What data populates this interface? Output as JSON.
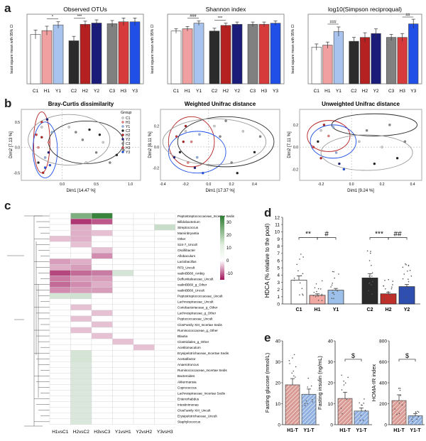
{
  "panel_labels": [
    "a",
    "b",
    "c",
    "d",
    "e"
  ],
  "colors": {
    "C1": "#ffffff",
    "H1": "#f0a0a0",
    "Y1": "#a8c4ee",
    "C2": "#2b2b2b",
    "H2": "#b52020",
    "Y2": "#1b1b7a",
    "C3": "#808080",
    "H3": "#d63a3a",
    "Y3": "#1f4fe6",
    "d_C1": "#ffffff",
    "d_H1": "#f2a9a3",
    "d_Y1": "#9cc0ea",
    "d_C2": "#2a2a2a",
    "d_H2": "#c0302a",
    "d_Y2": "#2e4fb0",
    "hm_pos": "#2e7d32",
    "hm_neg": "#a0135a"
  },
  "chart_data": [
    {
      "type": "bar",
      "id": "a1",
      "title": "Observed OTUs",
      "ylabel": "least square mean with 95% CI",
      "categories": [
        "C1",
        "H1",
        "Y1",
        "C2",
        "H2",
        "Y2",
        "C3",
        "H3",
        "Y3"
      ],
      "values": [
        78,
        84,
        93,
        68,
        94,
        96,
        95,
        98,
        98
      ],
      "errors": [
        7,
        7,
        5,
        7,
        5,
        5,
        5,
        6,
        6
      ],
      "ylim": [
        0,
        110
      ],
      "annotations": [
        {
          "from": 1,
          "to": 2,
          "text": "*"
        },
        {
          "from": 3,
          "to": 4,
          "text": "***"
        }
      ]
    },
    {
      "type": "bar",
      "id": "a2",
      "title": "Shannon index",
      "ylabel": "least square mean with 95% CI",
      "categories": [
        "C1",
        "H1",
        "Y1",
        "C2",
        "H2",
        "Y2",
        "C3",
        "H3",
        "Y3"
      ],
      "values": [
        4.7,
        4.9,
        5.4,
        4.7,
        5.2,
        5.3,
        5.3,
        5.3,
        5.4
      ],
      "errors": [
        0.2,
        0.2,
        0.2,
        0.25,
        0.2,
        0.2,
        0.2,
        0.2,
        0.2
      ],
      "ylim": [
        0,
        6.2
      ],
      "annotations": [
        {
          "from": 1,
          "to": 2,
          "text": "###"
        },
        {
          "from": 3,
          "to": 4,
          "text": "***"
        }
      ]
    },
    {
      "type": "bar",
      "id": "a3",
      "title": "log10(Simpson reciproqual)",
      "ylabel": "least square mean with 95% CI",
      "categories": [
        "C1",
        "H1",
        "Y1",
        "C2",
        "H2",
        "Y2",
        "C3",
        "H3",
        "Y3"
      ],
      "values": [
        9.5,
        10,
        13.5,
        11,
        12,
        13,
        12,
        12,
        15.5
      ],
      "errors": [
        0.8,
        0.8,
        1.2,
        1,
        1.2,
        1.2,
        0.8,
        1,
        1.2
      ],
      "ylim": [
        0,
        18
      ],
      "annotations": [
        {
          "from": 1,
          "to": 2,
          "text": "###"
        },
        {
          "from": 7,
          "to": 8,
          "text": "##"
        }
      ]
    },
    {
      "type": "scatter",
      "id": "b1",
      "title": "Bray-Curtis dissimilarity",
      "xlabel": "Dim1 [14.47 %]",
      "ylabel": "Dim2 [7.13 %]",
      "xlim": [
        -0.6,
        1.15
      ],
      "ylim": [
        -0.65,
        0.75
      ],
      "xticks": [
        0,
        0.5,
        1
      ],
      "xtick_labels": [
        "0.0",
        "0.5",
        "1.0"
      ],
      "yticks": [
        -0.5,
        0,
        0.5
      ],
      "ytick_labels": [
        "-0.5",
        "0.0",
        "0.5"
      ],
      "points": [
        [
          -0.3,
          0.4,
          "C1"
        ],
        [
          -0.2,
          0.1,
          "H1"
        ],
        [
          -0.25,
          -0.2,
          "Y1"
        ],
        [
          -0.35,
          -0.3,
          "C2"
        ],
        [
          -0.3,
          0.2,
          "H2"
        ],
        [
          -0.2,
          -0.1,
          "Y2"
        ],
        [
          0.2,
          0.3,
          "C3"
        ],
        [
          0.3,
          0.15,
          "C3"
        ],
        [
          0.5,
          -0.1,
          "C3"
        ],
        [
          0.6,
          0.1,
          "C1"
        ],
        [
          0.8,
          -0.15,
          "C2"
        ],
        [
          0.9,
          -0.05,
          "C3"
        ],
        [
          -0.3,
          0.5,
          "H3"
        ],
        [
          -0.25,
          -0.4,
          "Y3"
        ],
        [
          0.1,
          0.4,
          "C1"
        ],
        [
          0.4,
          0.35,
          "C2"
        ],
        [
          0.7,
          -0.3,
          "C3"
        ],
        [
          -0.35,
          0.0,
          "H1"
        ],
        [
          -0.15,
          0.3,
          "Y1"
        ],
        [
          -0.28,
          -0.5,
          "H2"
        ],
        [
          0.35,
          -0.3,
          "C1"
        ],
        [
          0.55,
          0.25,
          "C2"
        ],
        [
          -0.22,
          0.55,
          "Y2"
        ],
        [
          -0.38,
          0.25,
          "H3"
        ],
        [
          -0.18,
          -0.35,
          "Y3"
        ]
      ],
      "ellipses": [
        [
          -0.3,
          0.1,
          0.12,
          0.6,
          "#b52020"
        ],
        [
          -0.25,
          -0.05,
          0.18,
          0.55,
          "#1f4fe6"
        ],
        [
          0.35,
          0.1,
          0.55,
          0.42,
          "#2b2b2b"
        ],
        [
          0.1,
          0.15,
          0.6,
          0.5,
          "#9a9a9a"
        ]
      ],
      "legend": {
        "title": "Group",
        "entries": [
          "C1",
          "H1",
          "Y1",
          "C2",
          "H2",
          "Y2",
          "C3",
          "H3",
          "Y3"
        ]
      }
    },
    {
      "type": "scatter",
      "id": "b2",
      "title": "Weighted Unifrac distance",
      "xlabel": "Dim1 [17.37 %]",
      "ylabel": "Dim2 [8.11 %]",
      "xlim": [
        -0.42,
        0.62
      ],
      "ylim": [
        -0.32,
        0.36
      ],
      "xticks": [
        -0.4,
        -0.2,
        0,
        0.2,
        0.4
      ],
      "xtick_labels": [
        "-0.4",
        "-0.2",
        "0.0",
        "0.2",
        "0.4"
      ],
      "yticks": [
        -0.2,
        0,
        0.2
      ],
      "ytick_labels": [
        "-0.2",
        "0.0",
        "0.2"
      ],
      "points": [
        [
          -0.2,
          0.15,
          "C1"
        ],
        [
          -0.15,
          0.05,
          "H1"
        ],
        [
          -0.1,
          -0.1,
          "Y1"
        ],
        [
          -0.25,
          -0.05,
          "C2"
        ],
        [
          -0.2,
          0.2,
          "H2"
        ],
        [
          -0.12,
          -0.2,
          "Y2"
        ],
        [
          0.1,
          0.1,
          "C3"
        ],
        [
          0.3,
          0.15,
          "C1"
        ],
        [
          0.4,
          -0.05,
          "C2"
        ],
        [
          0.2,
          -0.15,
          "C3"
        ],
        [
          -0.28,
          0.1,
          "H3"
        ],
        [
          -0.05,
          -0.25,
          "Y3"
        ],
        [
          0.05,
          0.2,
          "C1"
        ],
        [
          0.45,
          0.1,
          "C3"
        ],
        [
          -0.18,
          -0.15,
          "H1"
        ],
        [
          -0.08,
          0.12,
          "Y1"
        ],
        [
          -0.22,
          0.05,
          "H2"
        ],
        [
          0.25,
          -0.25,
          "C2"
        ],
        [
          -0.3,
          -0.1,
          "Y2"
        ],
        [
          0.15,
          0.25,
          "C3"
        ]
      ],
      "ellipses": [
        [
          -0.15,
          0.05,
          0.2,
          0.24,
          "#b52020"
        ],
        [
          -0.1,
          -0.05,
          0.25,
          0.2,
          "#1f4fe6"
        ],
        [
          0.15,
          0.05,
          0.42,
          0.24,
          "#2b2b2b"
        ],
        [
          0.05,
          0.05,
          0.45,
          0.22,
          "#9a9a9a"
        ]
      ]
    },
    {
      "type": "scatter",
      "id": "b3",
      "title": "Unweighted Unifrac distance",
      "xlabel": "Dim1 [9.24 %]",
      "ylabel": "Dim2 [7.11 %]",
      "xlim": [
        -0.34,
        0.46
      ],
      "ylim": [
        -0.3,
        0.34
      ],
      "xticks": [
        -0.2,
        0,
        0.2,
        0.4
      ],
      "xtick_labels": [
        "-0.2",
        "0.0",
        "0.2",
        "0.4"
      ],
      "yticks": [
        -0.2,
        0,
        0.2
      ],
      "ytick_labels": [
        "-0.2",
        "0.0",
        "0.2"
      ],
      "points": [
        [
          -0.2,
          0.15,
          "C1"
        ],
        [
          -0.15,
          0.1,
          "H1"
        ],
        [
          -0.1,
          -0.05,
          "Y1"
        ],
        [
          -0.22,
          0.05,
          "C2"
        ],
        [
          -0.18,
          0.2,
          "H2"
        ],
        [
          -0.08,
          -0.15,
          "Y2"
        ],
        [
          0.1,
          0.15,
          "C3"
        ],
        [
          0.2,
          0.0,
          "C1"
        ],
        [
          0.3,
          -0.1,
          "C2"
        ],
        [
          0.25,
          0.2,
          "C3"
        ],
        [
          -0.25,
          0.0,
          "H3"
        ],
        [
          -0.05,
          -0.2,
          "Y3"
        ],
        [
          0.05,
          0.05,
          "C1"
        ],
        [
          0.35,
          0.05,
          "C3"
        ],
        [
          -0.12,
          0.18,
          "Y1"
        ],
        [
          -0.2,
          -0.1,
          "H2"
        ],
        [
          0.15,
          -0.15,
          "C2"
        ]
      ],
      "ellipses": [
        [
          -0.15,
          0.1,
          0.14,
          0.14,
          "#b52020"
        ],
        [
          -0.12,
          0.05,
          0.15,
          0.15,
          "#1f4fe6"
        ],
        [
          0.15,
          0.2,
          0.28,
          0.1,
          "#2b2b2b"
        ],
        [
          0.1,
          -0.05,
          0.3,
          0.16,
          "#9a9a9a"
        ]
      ]
    },
    {
      "type": "heatmap",
      "id": "c",
      "columns": [
        "H1vsC1",
        "H2vsC2",
        "H3vsC3",
        "Y1vsH1",
        "Y2vsH2",
        "Y3vsH3"
      ],
      "rows": [
        "Peptostreptococcaceae_Incertae Sedis",
        "Bifidobacterium",
        "Streptococcus",
        "Marvinbryantia",
        "Other",
        "S24-7_Uncult",
        "Oscillibacter",
        "Allobaculum",
        "Lactobacillus",
        "RF9_Uncult",
        "vadinBB60_Ambig",
        "Defluviitaleaceae_Uncult",
        "vadinBB60_g_Other",
        "vadinBB60_Uncult",
        "Peptostreptococcaceae_Uncult",
        "Lachnospiraceae_Uncult",
        "Coriobacteriaceae_g_Other",
        "Lachnospiraceae_g_Other",
        "Peptococcaceae_Uncult",
        "ClosFamily XIII_Incertae Sedis",
        "Ruminococcaceae_g_Other",
        "Blautia",
        "Clostridiales_g_Other",
        "Acetitomaculum",
        "Erysipelotrichaceae_Incertae Sedis",
        "Acetatifactor",
        "Anaerotruncus",
        "Ruminococcaceae_Incertae Sedis",
        "Bacteroides",
        "Akkermansia",
        "Coprococcus",
        "Lachnospiraceae_Incertae Sedis",
        "Enterorhabdus",
        "Intestinimonas",
        "ClosFamily XIII_Uncult",
        "Erysipelotrichaceae_Uncult",
        "Staphylococcus"
      ],
      "values": [
        [
          0,
          18,
          30,
          0,
          0,
          0
        ],
        [
          0,
          -10,
          -8,
          0,
          0,
          0
        ],
        [
          0,
          -3,
          0,
          0,
          0,
          5
        ],
        [
          0,
          -3,
          -2,
          0,
          0,
          0
        ],
        [
          -2,
          -3,
          0,
          0,
          0,
          0
        ],
        [
          0,
          -2,
          0,
          0,
          0,
          0
        ],
        [
          0,
          0,
          -2,
          0,
          0,
          0
        ],
        [
          0,
          0,
          -5,
          0,
          0,
          0
        ],
        [
          -4,
          -3,
          0,
          0,
          0,
          0
        ],
        [
          -3,
          -4,
          0,
          0,
          0,
          0
        ],
        [
          -9,
          -7,
          -6,
          3,
          0,
          0
        ],
        [
          -6,
          -4,
          -4,
          0,
          0,
          0
        ],
        [
          -7,
          -5,
          -3,
          0,
          0,
          0
        ],
        [
          -5,
          -4,
          -4,
          0,
          0,
          0
        ],
        [
          3,
          4,
          0,
          0,
          0,
          0
        ],
        [
          0,
          0,
          0,
          0,
          0,
          0
        ],
        [
          0,
          -2,
          0,
          0,
          0,
          0
        ],
        [
          0,
          0,
          -2,
          0,
          0,
          0
        ],
        [
          0,
          -2,
          0,
          0,
          0,
          0
        ],
        [
          0,
          0,
          -2,
          0,
          0,
          0
        ],
        [
          0,
          -2,
          0,
          0,
          0,
          0
        ],
        [
          0,
          0,
          -2,
          0,
          0,
          0
        ],
        [
          0,
          0,
          0,
          -2,
          0,
          0
        ],
        [
          0,
          0,
          0,
          0,
          -2,
          0
        ],
        [
          0,
          3,
          0,
          0,
          0,
          0
        ],
        [
          0,
          3,
          0,
          0,
          0,
          0
        ],
        [
          0,
          2,
          0,
          0,
          0,
          0
        ],
        [
          0,
          2,
          0,
          0,
          0,
          0
        ],
        [
          0,
          2,
          0,
          0,
          0,
          0
        ],
        [
          0,
          2,
          0,
          0,
          0,
          0
        ],
        [
          0,
          2,
          0,
          0,
          0,
          0
        ],
        [
          0,
          2,
          0,
          0,
          0,
          0
        ],
        [
          0,
          2,
          0,
          0,
          0,
          0
        ],
        [
          0,
          2,
          0,
          0,
          0,
          0
        ],
        [
          0,
          2,
          0,
          0,
          0,
          0
        ],
        [
          0,
          2,
          0,
          0,
          0,
          0
        ],
        [
          0,
          2,
          0,
          0,
          0,
          0
        ]
      ],
      "colorbar": {
        "ticks": [
          30,
          20,
          10,
          0,
          -10
        ],
        "vmin": -15,
        "vmax": 35
      }
    },
    {
      "type": "bar",
      "id": "d",
      "ylabel": "HDCA (% relative to the pool)",
      "categories": [
        "C1",
        "H1",
        "Y1",
        "C2",
        "H2",
        "Y2"
      ],
      "values": [
        3.3,
        1.2,
        1.9,
        3.6,
        1.4,
        2.4
      ],
      "errors": [
        0.6,
        0.2,
        0.25,
        0.6,
        0.2,
        0.3
      ],
      "ylim": [
        0,
        12
      ],
      "yticks": [
        0,
        1,
        2,
        3,
        4,
        5,
        6,
        7,
        8,
        9,
        10,
        11,
        12
      ],
      "annotations": [
        {
          "from": 0,
          "to": 1,
          "text": "**"
        },
        {
          "from": 1,
          "to": 2,
          "text": "#"
        },
        {
          "from": 3,
          "to": 4,
          "text": "***"
        },
        {
          "from": 4,
          "to": 5,
          "text": "##"
        }
      ]
    },
    {
      "type": "bar",
      "id": "e1",
      "ylabel": "Fasting glucose (mmol/L)",
      "categories": [
        "H1-T",
        "Y1-T"
      ],
      "values": [
        19,
        14.5
      ],
      "errors": [
        3,
        2.5
      ],
      "ylim": [
        0,
        40
      ],
      "yticks": [
        0,
        10,
        20,
        30,
        40
      ],
      "annotations": []
    },
    {
      "type": "bar",
      "id": "e2",
      "ylabel": "Fasting insulin (ng/mL)",
      "categories": [
        "H1-T",
        "Y1-T"
      ],
      "values": [
        12.5,
        6.5
      ],
      "errors": [
        3,
        1.5
      ],
      "ylim": [
        0,
        40
      ],
      "yticks": [
        0,
        10,
        20,
        30,
        40
      ],
      "annotations": [
        {
          "from": 0,
          "to": 1,
          "text": "$"
        }
      ]
    },
    {
      "type": "bar",
      "id": "e3",
      "ylabel": "HOMA-IR index",
      "categories": [
        "H1-T",
        "Y1-T"
      ],
      "values": [
        230,
        85
      ],
      "errors": [
        55,
        20
      ],
      "ylim": [
        0,
        800
      ],
      "yticks": [
        0,
        200,
        400,
        600,
        800
      ],
      "annotations": [
        {
          "from": 0,
          "to": 1,
          "text": "$"
        }
      ]
    }
  ]
}
